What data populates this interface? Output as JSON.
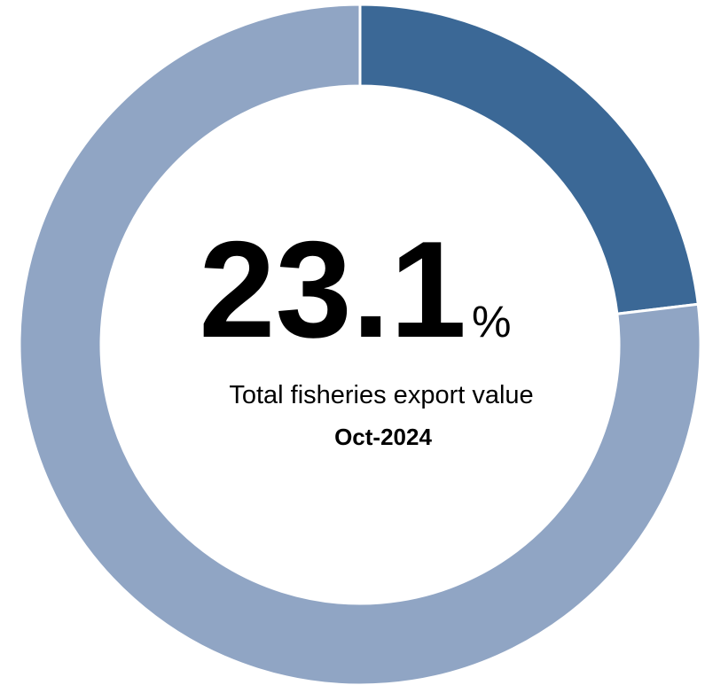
{
  "chart_data": {
    "type": "donut",
    "values": [
      23.1,
      76.9
    ],
    "colors": [
      "#3b6896",
      "#90a5c4"
    ],
    "unit": "%",
    "label": "Total fisheries export value",
    "date": "Oct-2024"
  }
}
